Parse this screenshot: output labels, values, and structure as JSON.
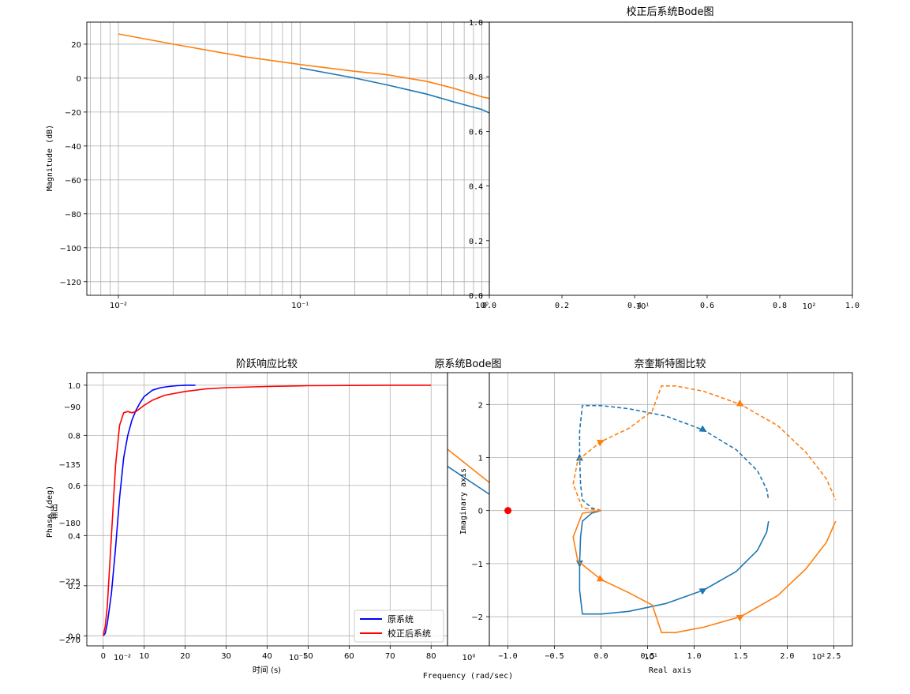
{
  "figure": {
    "titles": {
      "corrected_bode": "校正后系统Bode图",
      "step_compare": "阶跃响应比较",
      "original_bode": "原系统Bode图",
      "nyquist_compare": "奈奎斯特图比较"
    },
    "labels": {
      "magnitude": "Magnitude (dB)",
      "phase": "Phase (deg)",
      "frequency": "Frequency (rad/sec)",
      "output": "输出",
      "time": "时间 (s)",
      "imag": "Imaginary axis",
      "real": "Real axis"
    },
    "legend": [
      "原系统",
      "校正后系统"
    ]
  },
  "chart_data": [
    {
      "id": "magnitude-top",
      "type": "line",
      "xscale": "log",
      "xlim": [
        0.0067,
        1.1
      ],
      "ylim": [
        -128,
        33
      ],
      "ylabel": "Magnitude (dB)",
      "xticks": [
        {
          "v": 0.01,
          "t": "10⁻²"
        },
        {
          "v": 0.1,
          "t": "10⁻¹"
        },
        {
          "v": 1,
          "t": "10⁰"
        }
      ],
      "yticks": [
        20,
        0,
        -20,
        -40,
        -60,
        -80,
        -100,
        -120
      ],
      "grid": true,
      "series": [
        {
          "color": "#1f77b4",
          "x": [
            0.1,
            0.2,
            0.3,
            0.5,
            0.7,
            1.0,
            1.1
          ],
          "y": [
            6,
            0,
            -4,
            -9.5,
            -14,
            -18.5,
            -20.5
          ]
        },
        {
          "color": "#ff7f0e",
          "x": [
            0.01,
            0.02,
            0.05,
            0.1,
            0.2,
            0.3,
            0.5,
            0.7,
            1.0,
            1.1
          ],
          "y": [
            26,
            20,
            12.5,
            8,
            4,
            2,
            -2,
            -6,
            -11,
            -12
          ]
        }
      ]
    },
    {
      "id": "corrected-bode",
      "type": "line",
      "title": "校正后系统Bode图",
      "xlim": [
        0,
        1
      ],
      "ylim": [
        0,
        1
      ],
      "xticks": [
        "0.0",
        "0.2",
        "0.4",
        "0.6",
        "0.8",
        "1.0"
      ],
      "yticks": [
        "0.0",
        "0.2",
        "0.4",
        "0.6",
        "0.8",
        "1.0"
      ],
      "overlay_xticks": [
        "10¹",
        "10²"
      ],
      "series": []
    },
    {
      "id": "step-response",
      "type": "line",
      "title": "阶跃响应比较",
      "xlabel": "时间 (s)",
      "ylabel": "输出",
      "xlim": [
        -4,
        84
      ],
      "ylim": [
        -0.04,
        1.05
      ],
      "xticks": [
        0,
        10,
        20,
        30,
        40,
        50,
        60,
        70,
        80
      ],
      "yticks": [
        "0.0",
        "0.2",
        "0.4",
        "0.6",
        "0.8",
        "1.0"
      ],
      "legend_position": "lower right",
      "grid": true,
      "series": [
        {
          "name": "原系统",
          "color": "#0000ff",
          "x": [
            0,
            0.5,
            1,
            2,
            3,
            4,
            5,
            6,
            7,
            8,
            9,
            10,
            12,
            14,
            16,
            18,
            20,
            22.5
          ],
          "y": [
            0,
            0.01,
            0.05,
            0.17,
            0.35,
            0.55,
            0.71,
            0.8,
            0.86,
            0.9,
            0.93,
            0.955,
            0.98,
            0.99,
            0.995,
            0.998,
            1.0,
            1.0
          ]
        },
        {
          "name": "校正后系统",
          "color": "#ff0000",
          "x": [
            0,
            0.5,
            1,
            2,
            3,
            4,
            5,
            6,
            7,
            8,
            10,
            12,
            15,
            20,
            25,
            30,
            40,
            50,
            60,
            70,
            80
          ],
          "y": [
            0,
            0.04,
            0.12,
            0.4,
            0.68,
            0.84,
            0.89,
            0.895,
            0.89,
            0.895,
            0.92,
            0.94,
            0.96,
            0.975,
            0.985,
            0.99,
            0.995,
            0.998,
            0.999,
            1.0,
            1.0
          ]
        }
      ]
    },
    {
      "id": "phase-overlay",
      "type": "line",
      "ylabel": "Phase (deg)",
      "yticks": [
        -90,
        -135,
        -180,
        -225,
        -270
      ],
      "xticks": [
        "10⁻²",
        "10⁻¹",
        "10⁰"
      ],
      "series": []
    },
    {
      "id": "original-bode",
      "type": "line",
      "title": "原系统Bode图",
      "xlabel": "Frequency (rad/sec)",
      "ylim": [
        -2.5,
        2.6
      ],
      "yticks": [
        2,
        1,
        0,
        -1,
        -2
      ],
      "series": [
        {
          "color": "#1f77b4",
          "x": [
            0,
            1
          ],
          "y": [
            0.85,
            0.33
          ]
        },
        {
          "color": "#ff7f0e",
          "x": [
            0,
            1
          ],
          "y": [
            1.17,
            0.55
          ]
        }
      ]
    },
    {
      "id": "nyquist",
      "type": "line",
      "title": "奈奎斯特图比较",
      "xlabel": "Real axis",
      "ylabel": "Imaginary axis",
      "xlim": [
        -1.2,
        2.7
      ],
      "ylim": [
        -2.55,
        2.6
      ],
      "xticks": [
        -1.0,
        -0.5,
        0.0,
        0.5,
        1.0,
        1.5,
        2.0,
        2.5
      ],
      "yticks": [
        2,
        1,
        0,
        -1,
        -2
      ],
      "overlay_xticks": [
        "10¹",
        "10²"
      ],
      "critical_point": [
        -1,
        0
      ],
      "grid": true,
      "series": [
        {
          "color": "#1f77b4",
          "x": [
            0.0,
            -0.1,
            -0.2,
            -0.22,
            -0.23,
            -0.23,
            -0.2,
            0.0,
            0.3,
            0.7,
            1.1,
            1.45,
            1.68,
            1.78,
            1.8
          ],
          "y": [
            0.0,
            -0.05,
            -0.2,
            -0.5,
            -1.0,
            -1.5,
            -1.95,
            -1.95,
            -1.9,
            -1.75,
            -1.5,
            -1.15,
            -0.75,
            -0.4,
            -0.2
          ]
        },
        {
          "color": "#1f77b4",
          "dashed": true,
          "x": [
            0.0,
            -0.1,
            -0.2,
            -0.22,
            -0.23,
            -0.23,
            -0.2,
            0.0,
            0.3,
            0.7,
            1.1,
            1.45,
            1.68,
            1.78,
            1.8
          ],
          "y": [
            0.0,
            0.05,
            0.2,
            0.5,
            1.0,
            1.5,
            1.98,
            1.98,
            1.92,
            1.78,
            1.52,
            1.15,
            0.75,
            0.4,
            0.2
          ]
        },
        {
          "color": "#ff7f0e",
          "x": [
            0.0,
            -0.2,
            -0.3,
            -0.25,
            0.0,
            0.3,
            0.55,
            0.65,
            0.8,
            1.1,
            1.5,
            1.9,
            2.2,
            2.42,
            2.52
          ],
          "y": [
            0.0,
            -0.05,
            -0.5,
            -0.95,
            -1.3,
            -1.55,
            -1.78,
            -2.3,
            -2.3,
            -2.2,
            -2.0,
            -1.6,
            -1.1,
            -0.6,
            -0.2
          ]
        },
        {
          "color": "#ff7f0e",
          "dashed": true,
          "x": [
            0.0,
            -0.2,
            -0.3,
            -0.25,
            0.0,
            0.3,
            0.55,
            0.65,
            0.8,
            1.1,
            1.5,
            1.9,
            2.2,
            2.42,
            2.52
          ],
          "y": [
            0.0,
            0.05,
            0.5,
            0.95,
            1.3,
            1.55,
            1.88,
            2.35,
            2.35,
            2.25,
            2.0,
            1.6,
            1.1,
            0.6,
            0.2
          ]
        }
      ]
    }
  ]
}
